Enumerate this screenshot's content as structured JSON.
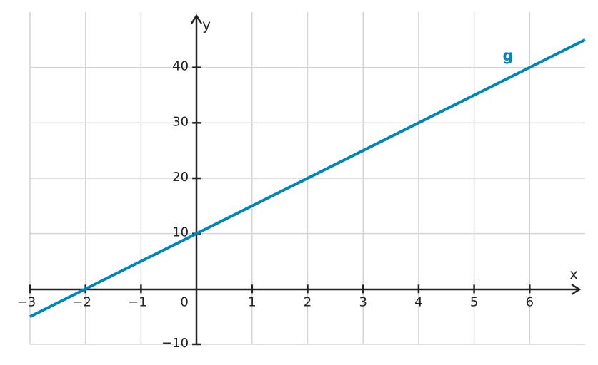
{
  "chart_data": {
    "type": "line",
    "xlabel": "x",
    "ylabel": "y",
    "x": [
      -3,
      7
    ],
    "series": [
      {
        "name": "g",
        "color": "#0085b8",
        "values": [
          -5,
          45
        ]
      }
    ],
    "xlim": [
      -3,
      7
    ],
    "ylim": [
      -10,
      50
    ],
    "xticks": [
      {
        "value": -3,
        "label": "−3"
      },
      {
        "value": -2,
        "label": "−2"
      },
      {
        "value": -1,
        "label": "−1"
      },
      0,
      1,
      2,
      3,
      4,
      5,
      6
    ],
    "yticks": [
      {
        "value": -10,
        "label": "−10"
      },
      10,
      20,
      30,
      40
    ],
    "grid": true
  }
}
